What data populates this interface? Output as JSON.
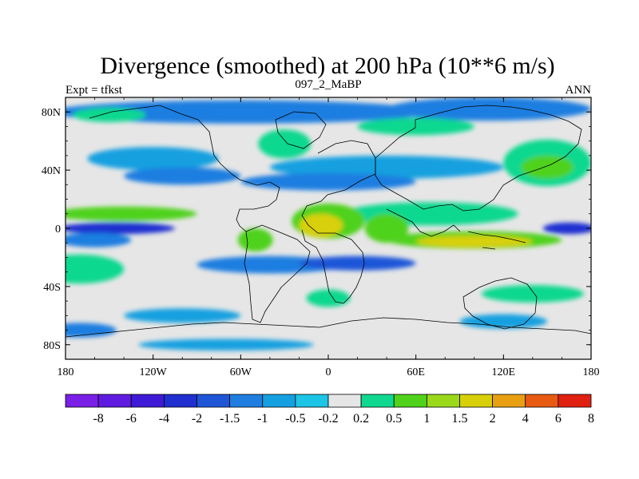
{
  "chart_data": {
    "type": "heatmap",
    "title": "Divergence (smoothed) at 200 hPa (10**6 m/s)",
    "subtitle_left": "Expt = tfkst",
    "subtitle_center": "097_2_MaBP",
    "subtitle_right": "ANN",
    "x_ticks": [
      "180",
      "120W",
      "60W",
      "0",
      "60E",
      "120E",
      "180"
    ],
    "y_ticks": [
      "80N",
      "40N",
      "0",
      "40S",
      "80S"
    ],
    "lon_range": [
      -180,
      180
    ],
    "lat_range": [
      -90,
      90
    ],
    "colorbar_labels": [
      "-8",
      "-6",
      "-4",
      "-2",
      "-1.5",
      "-1",
      "-0.5",
      "-0.2",
      "0.2",
      "0.5",
      "1",
      "1.5",
      "2",
      "4",
      "6",
      "8"
    ],
    "colorbar_colors": [
      "#7a1fe6",
      "#5f1be0",
      "#3f1ad6",
      "#1f2fd0",
      "#1f56d8",
      "#1f7ee0",
      "#14a0e0",
      "#1cc4e6",
      "#e6e6e6",
      "#10d890",
      "#50d21a",
      "#9ad81a",
      "#d8d00a",
      "#e8a012",
      "#e85a12",
      "#e02010"
    ],
    "field_regions": [
      {
        "lon": -60,
        "lat": 80,
        "rlon": 130,
        "rlat": 8,
        "level": -1
      },
      {
        "lon": 110,
        "lat": 82,
        "rlon": 70,
        "rlat": 8,
        "level": -1
      },
      {
        "lon": -150,
        "lat": 78,
        "rlon": 25,
        "rlat": 5,
        "level": 0.5
      },
      {
        "lon": 60,
        "lat": 70,
        "rlon": 40,
        "rlat": 6,
        "level": 0.5
      },
      {
        "lon": -30,
        "lat": 58,
        "rlon": 18,
        "rlat": 10,
        "level": 0.5
      },
      {
        "lon": -120,
        "lat": 48,
        "rlon": 45,
        "rlat": 8,
        "level": -0.5
      },
      {
        "lon": -100,
        "lat": 36,
        "rlon": 40,
        "rlat": 6,
        "level": -1
      },
      {
        "lon": 40,
        "lat": 42,
        "rlon": 80,
        "rlat": 8,
        "level": -0.5
      },
      {
        "lon": 0,
        "lat": 32,
        "rlon": 60,
        "rlat": 6,
        "level": -1
      },
      {
        "lon": 150,
        "lat": 45,
        "rlon": 30,
        "rlat": 16,
        "level": 0.5
      },
      {
        "lon": 150,
        "lat": 42,
        "rlon": 18,
        "rlat": 8,
        "level": 1
      },
      {
        "lon": 70,
        "lat": 10,
        "rlon": 60,
        "rlat": 8,
        "level": 0.5
      },
      {
        "lon": -140,
        "lat": 10,
        "rlon": 50,
        "rlat": 5,
        "level": 1
      },
      {
        "lon": -145,
        "lat": 0,
        "rlon": 40,
        "rlat": 4,
        "level": -2
      },
      {
        "lon": 165,
        "lat": 0,
        "rlon": 18,
        "rlat": 4,
        "level": -2
      },
      {
        "lon": -160,
        "lat": -8,
        "rlon": 25,
        "rlat": 5,
        "level": -1
      },
      {
        "lon": 0,
        "lat": 5,
        "rlon": 25,
        "rlat": 12,
        "level": 1
      },
      {
        "lon": -5,
        "lat": 2,
        "rlon": 15,
        "rlat": 8,
        "level": 2
      },
      {
        "lon": 40,
        "lat": 0,
        "rlon": 15,
        "rlat": 10,
        "level": 1
      },
      {
        "lon": -50,
        "lat": -8,
        "rlon": 12,
        "rlat": 8,
        "level": 1
      },
      {
        "lon": 100,
        "lat": -8,
        "rlon": 60,
        "rlat": 6,
        "level": 1
      },
      {
        "lon": 100,
        "lat": -9,
        "rlon": 40,
        "rlat": 4,
        "level": 2
      },
      {
        "lon": -40,
        "lat": -25,
        "rlon": 50,
        "rlat": 6,
        "level": -1
      },
      {
        "lon": 20,
        "lat": -24,
        "rlon": 40,
        "rlat": 5,
        "level": -1.5
      },
      {
        "lon": -170,
        "lat": -28,
        "rlon": 30,
        "rlat": 10,
        "level": 0.5
      },
      {
        "lon": 0,
        "lat": -48,
        "rlon": 15,
        "rlat": 6,
        "level": 0.5
      },
      {
        "lon": 140,
        "lat": -45,
        "rlon": 35,
        "rlat": 6,
        "level": 0.5
      },
      {
        "lon": -100,
        "lat": -60,
        "rlon": 40,
        "rlat": 5,
        "level": -0.5
      },
      {
        "lon": 120,
        "lat": -64,
        "rlon": 30,
        "rlat": 5,
        "level": -0.5
      },
      {
        "lon": -170,
        "lat": -70,
        "rlon": 25,
        "rlat": 5,
        "level": -1
      },
      {
        "lon": -70,
        "lat": -80,
        "rlon": 60,
        "rlat": 4,
        "level": -0.5
      }
    ]
  }
}
